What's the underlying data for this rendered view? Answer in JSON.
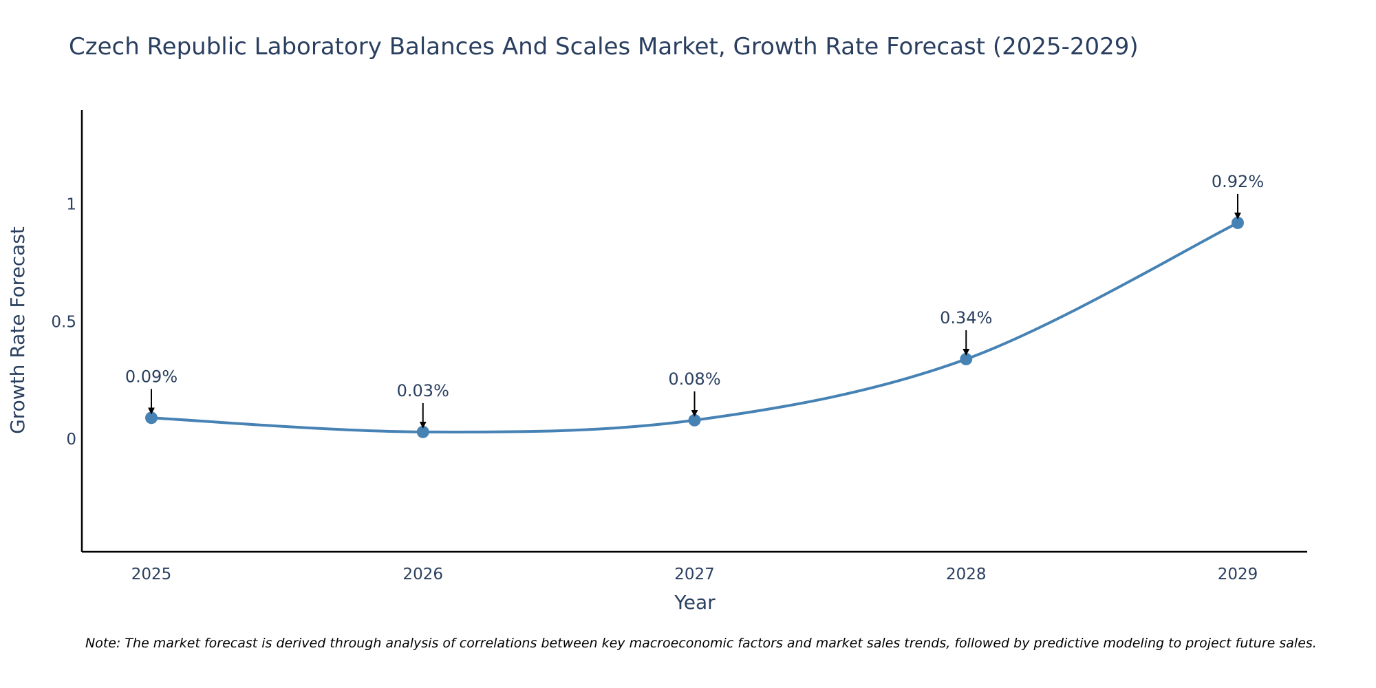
{
  "chart_data": {
    "type": "line",
    "title": "Czech Republic Laboratory Balances And Scales Market, Growth Rate Forecast (2025-2029)",
    "xlabel": "Year",
    "ylabel": "Growth Rate Forecast",
    "categories": [
      "2025",
      "2026",
      "2027",
      "2028",
      "2029"
    ],
    "values": [
      0.09,
      0.03,
      0.08,
      0.34,
      0.92
    ],
    "data_labels": [
      "0.09%",
      "0.03%",
      "0.08%",
      "0.34%",
      "0.92%"
    ],
    "ylim": [
      -0.48,
      1.4
    ],
    "y_ticks": [
      0,
      0.5,
      1
    ],
    "y_tick_labels": [
      "0",
      "0.5",
      "1"
    ],
    "grid": false,
    "line_shape": "spline",
    "colors": {
      "line": "#4682B4",
      "marker": "#4682B4",
      "arrow": "#000000",
      "axis": "#000000",
      "text": "#2a3f5f"
    }
  },
  "note": "Note: The market forecast is derived through analysis of correlations between key macroeconomic factors and market sales trends, followed by predictive modeling to project future sales."
}
